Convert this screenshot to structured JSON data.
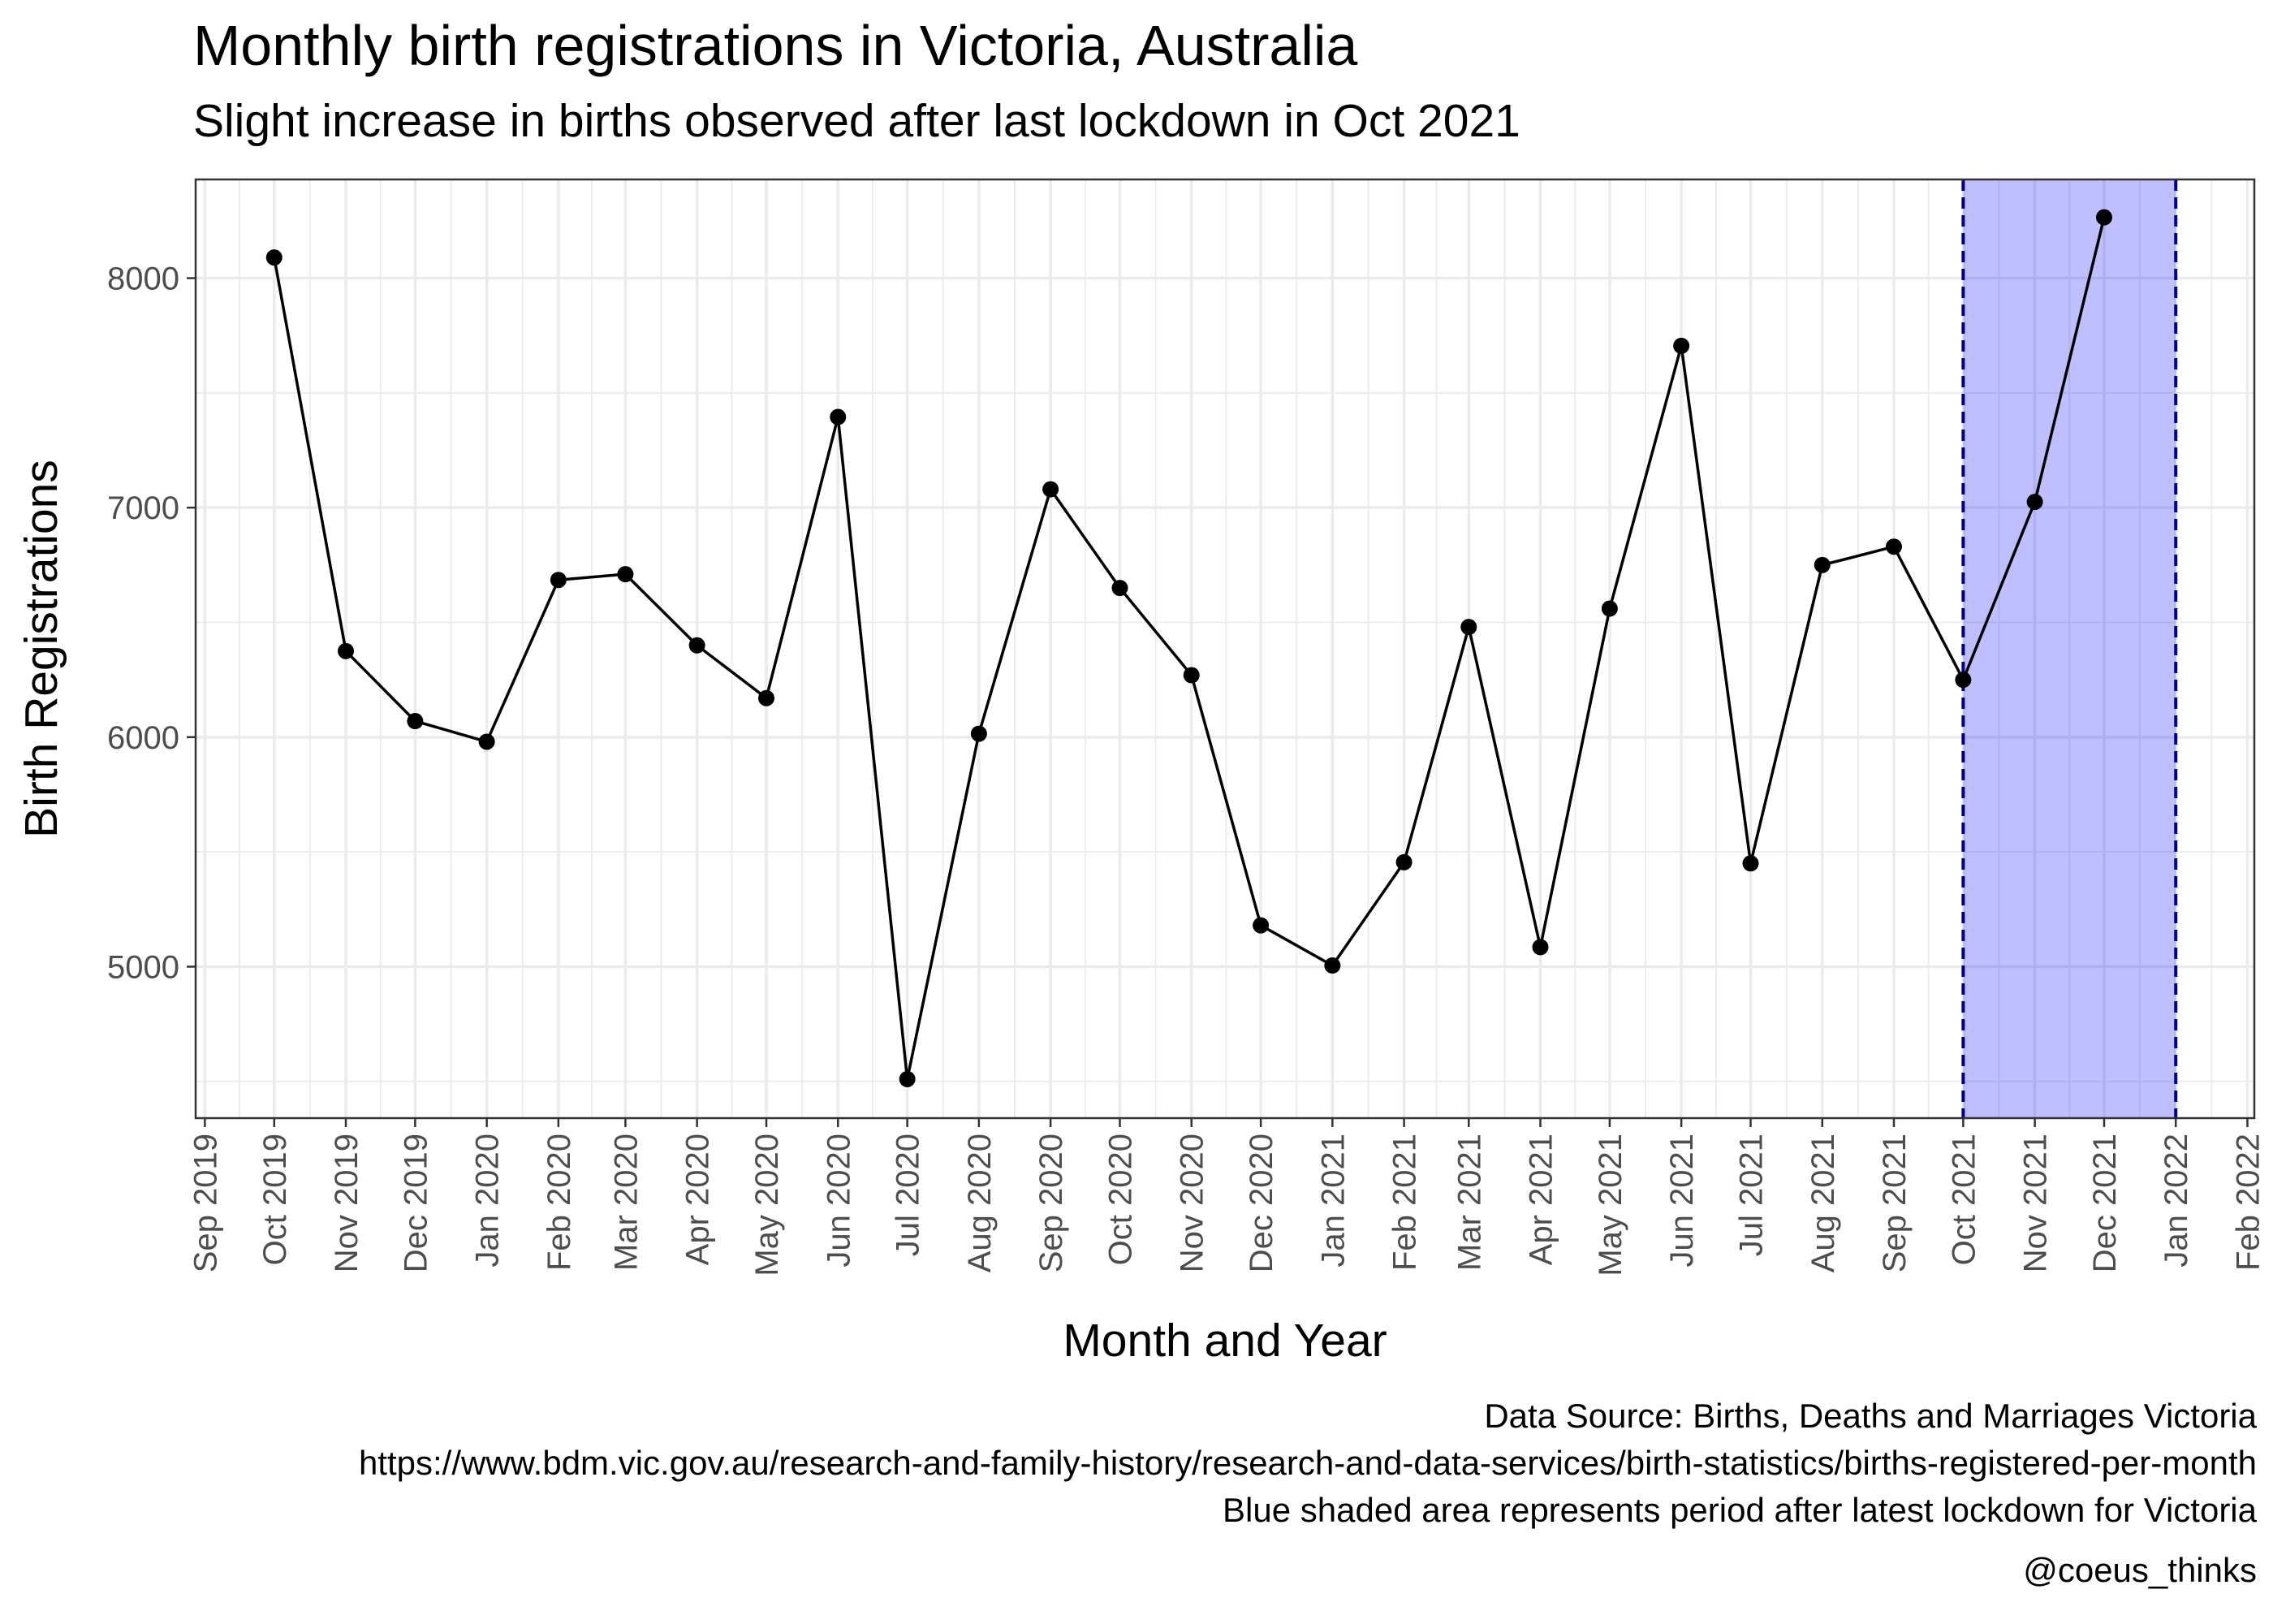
{
  "header": {
    "title": "Monthly birth registrations in Victoria, Australia",
    "subtitle": "Slight increase in births observed after last lockdown in Oct 2021"
  },
  "caption": {
    "lines": [
      "Data Source: Births, Deaths and Marriages Victoria",
      "https://www.bdm.vic.gov.au/research-and-family-history/research-and-data-services/birth-statistics/births-registered-per-month",
      "Blue shaded area represents period after latest lockdown for Victoria"
    ],
    "credit": "@coeus_thinks"
  },
  "chart_data": {
    "type": "line",
    "title": "Monthly birth registrations in Victoria, Australia",
    "subtitle": "Slight increase in births observed after last lockdown in Oct 2021",
    "xlabel": "Month and Year",
    "ylabel": "Birth Registrations",
    "x_axis": {
      "type": "date",
      "range": [
        "2019-08-28",
        "2022-02-04"
      ],
      "tick_dates": [
        "2019-09-01",
        "2019-10-01",
        "2019-11-01",
        "2019-12-01",
        "2020-01-01",
        "2020-02-01",
        "2020-03-01",
        "2020-04-01",
        "2020-05-01",
        "2020-06-01",
        "2020-07-01",
        "2020-08-01",
        "2020-09-01",
        "2020-10-01",
        "2020-11-01",
        "2020-12-01",
        "2021-01-01",
        "2021-02-01",
        "2021-03-01",
        "2021-04-01",
        "2021-05-01",
        "2021-06-01",
        "2021-07-01",
        "2021-08-01",
        "2021-09-01",
        "2021-10-01",
        "2021-11-01",
        "2021-12-01",
        "2022-01-01",
        "2022-02-01"
      ],
      "tick_labels": [
        "Sep 2019",
        "Oct 2019",
        "Nov 2019",
        "Dec 2019",
        "Jan 2020",
        "Feb 2020",
        "Mar 2020",
        "Apr 2020",
        "May 2020",
        "Jun 2020",
        "Jul 2020",
        "Aug 2020",
        "Sep 2020",
        "Oct 2020",
        "Nov 2020",
        "Dec 2020",
        "Jan 2021",
        "Feb 2021",
        "Mar 2021",
        "Apr 2021",
        "May 2021",
        "Jun 2021",
        "Jul 2021",
        "Aug 2021",
        "Sep 2021",
        "Oct 2021",
        "Nov 2021",
        "Dec 2021",
        "Jan 2022",
        "Feb 2022"
      ]
    },
    "y_axis": {
      "range": [
        4340,
        8430
      ],
      "ticks": [
        5000,
        6000,
        7000,
        8000
      ],
      "tick_labels": [
        "5000",
        "6000",
        "7000",
        "8000"
      ]
    },
    "grid": true,
    "series": [
      {
        "color": "#000000",
        "points": [
          {
            "x": "2019-10-01",
            "y": 8090
          },
          {
            "x": "2019-11-01",
            "y": 6375
          },
          {
            "x": "2019-12-01",
            "y": 6070
          },
          {
            "x": "2020-01-01",
            "y": 5980
          },
          {
            "x": "2020-02-01",
            "y": 6685
          },
          {
            "x": "2020-03-01",
            "y": 6710
          },
          {
            "x": "2020-04-01",
            "y": 6400
          },
          {
            "x": "2020-05-01",
            "y": 6170
          },
          {
            "x": "2020-06-01",
            "y": 7395
          },
          {
            "x": "2020-07-01",
            "y": 4510
          },
          {
            "x": "2020-08-01",
            "y": 6015
          },
          {
            "x": "2020-09-01",
            "y": 7080
          },
          {
            "x": "2020-10-01",
            "y": 6650
          },
          {
            "x": "2020-11-01",
            "y": 6270
          },
          {
            "x": "2020-12-01",
            "y": 5180
          },
          {
            "x": "2021-01-01",
            "y": 5005
          },
          {
            "x": "2021-02-01",
            "y": 5455
          },
          {
            "x": "2021-03-01",
            "y": 6480
          },
          {
            "x": "2021-04-01",
            "y": 5085
          },
          {
            "x": "2021-05-01",
            "y": 6560
          },
          {
            "x": "2021-06-01",
            "y": 7705
          },
          {
            "x": "2021-07-01",
            "y": 5450
          },
          {
            "x": "2021-08-01",
            "y": 6750
          },
          {
            "x": "2021-09-01",
            "y": 6830
          },
          {
            "x": "2021-10-01",
            "y": 6250
          },
          {
            "x": "2021-11-01",
            "y": 7025
          },
          {
            "x": "2021-12-01",
            "y": 8265
          }
        ]
      }
    ],
    "shaded_region": {
      "x_start": "2021-10-01",
      "x_end": "2022-01-01",
      "fill_color": "#0000ff",
      "fill_opacity": 0.25,
      "line_color": "#00008b",
      "line_style": "dashed"
    }
  }
}
